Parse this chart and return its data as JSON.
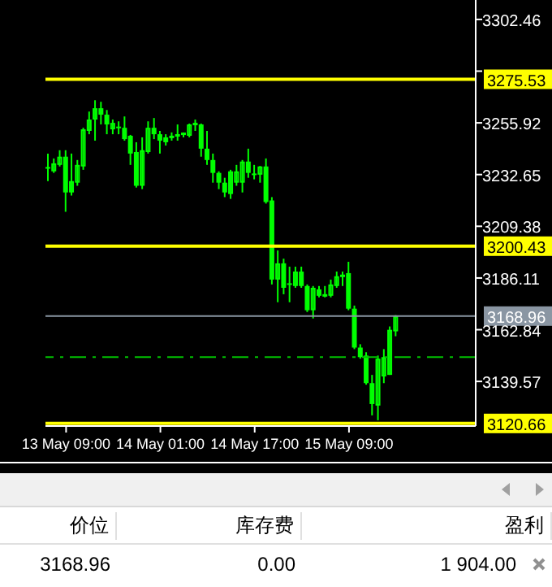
{
  "chart_data": {
    "type": "candlestick",
    "categories": [
      null,
      null,
      null,
      "13 May 09:00",
      null,
      null,
      null,
      null,
      null,
      null,
      null,
      null,
      null,
      null,
      null,
      null,
      null,
      null,
      null,
      "14 May 01:00",
      null,
      null,
      null,
      null,
      null,
      null,
      null,
      null,
      null,
      null,
      null,
      null,
      null,
      null,
      null,
      "14 May 17:00",
      null,
      null,
      null,
      null,
      null,
      null,
      null,
      null,
      null,
      null,
      null,
      null,
      null,
      null,
      null,
      "15 May 09:00",
      null,
      null,
      null,
      null,
      null,
      null,
      null,
      null,
      null,
      null,
      null,
      null,
      null,
      null,
      null,
      null,
      null,
      null,
      null,
      null,
      null
    ],
    "series": [
      {
        "color": "#00ff00",
        "ohlc": [
          [
            3235.6,
            3242.1,
            3229.7,
            3235.3
          ],
          [
            3234.1,
            3239.9,
            3233.4,
            3237.7
          ],
          [
            3237.0,
            3243.6,
            3236.3,
            3240.7
          ],
          [
            3240.7,
            3243.6,
            3215.9,
            3224.6
          ],
          [
            3224.6,
            3242.1,
            3223.2,
            3229.7
          ],
          [
            3229.0,
            3239.2,
            3227.6,
            3237.0
          ],
          [
            3236.3,
            3253.7,
            3234.8,
            3253.0
          ],
          [
            3252.3,
            3261.0,
            3250.8,
            3257.4
          ],
          [
            3257.4,
            3266.1,
            3247.9,
            3262.5
          ],
          [
            3262.5,
            3265.4,
            3255.2,
            3259.6
          ],
          [
            3259.6,
            3261.7,
            3250.8,
            3255.2
          ],
          [
            3253.0,
            3257.4,
            3250.8,
            3255.9
          ],
          [
            3253.7,
            3256.6,
            3250.8,
            3253.5
          ],
          [
            3253.7,
            3258.8,
            3247.9,
            3248.6
          ],
          [
            3250.1,
            3250.5,
            3237.0,
            3242.1
          ],
          [
            3242.8,
            3247.2,
            3226.8,
            3227.6
          ],
          [
            3227.6,
            3249.4,
            3226.1,
            3243.6
          ],
          [
            3242.8,
            3256.6,
            3242.1,
            3253.7
          ],
          [
            3253.7,
            3258.1,
            3248.6,
            3250.8
          ],
          [
            3250.8,
            3252.3,
            3242.1,
            3247.9
          ],
          [
            3249.4,
            3250.8,
            3245.7,
            3247.2
          ],
          [
            3249.4,
            3251.6,
            3247.9,
            3249.6
          ],
          [
            3250.1,
            3255.2,
            3247.9,
            3250.3
          ],
          [
            3250.8,
            3251.6,
            3249.4,
            3250.9
          ],
          [
            3250.1,
            3255.6,
            3249.4,
            3255.2
          ],
          [
            3255.2,
            3257.4,
            3252.3,
            3255.4
          ],
          [
            3255.2,
            3255.6,
            3240.7,
            3244.3
          ],
          [
            3244.3,
            3252.3,
            3237.0,
            3239.2
          ],
          [
            3239.2,
            3242.1,
            3229.0,
            3233.4
          ],
          [
            3233.4,
            3234.1,
            3226.1,
            3229.0
          ],
          [
            3229.0,
            3231.2,
            3222.5,
            3224.6
          ],
          [
            3223.9,
            3234.8,
            3221.7,
            3234.1
          ],
          [
            3229.0,
            3237.0,
            3227.6,
            3234.1
          ],
          [
            3229.0,
            3239.2,
            3224.6,
            3238.5
          ],
          [
            3238.5,
            3244.3,
            3231.2,
            3233.4
          ],
          [
            3232.6,
            3237.0,
            3230.5,
            3232.4
          ],
          [
            3232.6,
            3236.5,
            3229.0,
            3236.3
          ],
          [
            3236.3,
            3239.9,
            3219.6,
            3220.3
          ],
          [
            3221.0,
            3222.5,
            3183.2,
            3185.4
          ],
          [
            3185.4,
            3198.5,
            3175.2,
            3192.7
          ],
          [
            3192.7,
            3194.8,
            3178.8,
            3181.7
          ],
          [
            3183.2,
            3191.2,
            3175.2,
            3183.0
          ],
          [
            3182.5,
            3191.2,
            3181.7,
            3189.0
          ],
          [
            3189.0,
            3191.2,
            3181.7,
            3182.5
          ],
          [
            3182.5,
            3183.2,
            3170.8,
            3171.6
          ],
          [
            3171.6,
            3182.5,
            3167.9,
            3181.7
          ],
          [
            3181.0,
            3182.5,
            3177.4,
            3178.1
          ],
          [
            3178.1,
            3182.5,
            3177.4,
            3178.3
          ],
          [
            3178.1,
            3185.4,
            3177.4,
            3183.2
          ],
          [
            3182.5,
            3189.0,
            3181.7,
            3186.9
          ],
          [
            3186.9,
            3189.0,
            3182.5,
            3187.1
          ],
          [
            3188.3,
            3193.4,
            3171.6,
            3172.3
          ],
          [
            3172.3,
            3173.7,
            3154.1,
            3154.8
          ],
          [
            3154.8,
            3156.3,
            3149.8,
            3150.5
          ],
          [
            3151.2,
            3152.7,
            3138.1,
            3138.8
          ],
          [
            3138.8,
            3142.5,
            3124.3,
            3129.4
          ],
          [
            3128.7,
            3151.2,
            3122.1,
            3149.8
          ],
          [
            3141.8,
            3154.1,
            3138.8,
            3150.5
          ],
          [
            3142.5,
            3164.3,
            3142.5,
            3162.8
          ],
          [
            3162.1,
            3169.4,
            3159.9,
            3168.96
          ],
          null,
          null,
          null,
          null,
          null,
          null,
          null,
          null,
          null,
          null,
          null,
          null,
          null
        ]
      }
    ],
    "ylim": [
      3119.5,
      3311.2
    ],
    "yticks": [
      3302.46,
      {
        "value": 3279.19,
        "label": null
      },
      3255.92,
      3232.65,
      3209.38,
      3186.11,
      3162.84,
      3139.57
    ],
    "ref_lines": [
      {
        "axis": "y",
        "value": 3275.53,
        "label": "3275.53",
        "color": "#ffff00"
      },
      {
        "axis": "y",
        "value": 3200.43,
        "label": "3200.43",
        "color": "#ffff00"
      },
      {
        "axis": "y",
        "value": 3120.66,
        "label": "3120.66",
        "color": "#ffff00"
      },
      {
        "axis": "y",
        "value": 3168.96,
        "label": "3168.96",
        "color": "#8a96a3"
      },
      {
        "axis": "y",
        "value": 3150.5,
        "label": null,
        "color": "#00c000",
        "line_style": "dashed"
      }
    ],
    "annotations": [
      "价位",
      "库存费",
      "盈利",
      "3168.96",
      "0.00",
      "1 904.00"
    ]
  }
}
